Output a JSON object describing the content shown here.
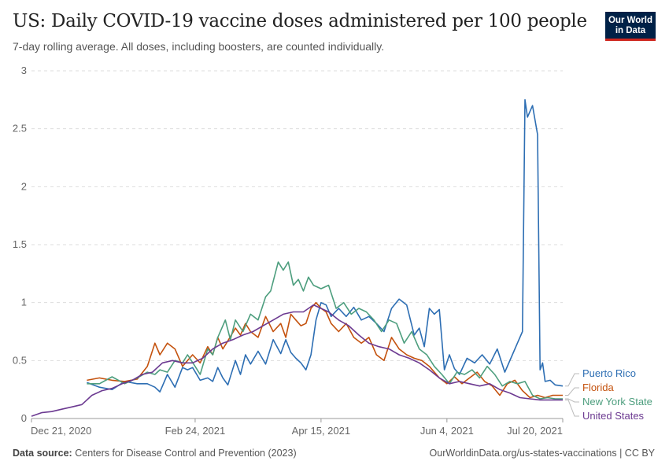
{
  "header": {
    "title": "US: Daily COVID-19 vaccine doses administered per 100 people",
    "subtitle": "7-day rolling average. All doses, including boosters, are counted individually.",
    "logo_line1": "Our World",
    "logo_line2": "in Data"
  },
  "footer": {
    "source_label": "Data source:",
    "source_text": "Centers for Disease Control and Prevention (2023)",
    "right_text": "OurWorldinData.org/us-states-vaccinations | CC BY"
  },
  "colors": {
    "puerto_rico": "#2d6eb3",
    "florida": "#c4520e",
    "new_york_state": "#4d9e7e",
    "united_states": "#6c3a91",
    "grid": "#dddddd"
  },
  "chart_data": {
    "type": "line",
    "title": "US: Daily COVID-19 vaccine doses administered per 100 people",
    "subtitle": "7-day rolling average. All doses, including boosters, are counted individually.",
    "ylim": [
      0,
      3
    ],
    "y_ticks": [
      0,
      0.5,
      1,
      1.5,
      2,
      2.5,
      3
    ],
    "y_tick_labels": [
      "0",
      "0.5",
      "1",
      "1.5",
      "2",
      "2.5",
      "3"
    ],
    "x_ticks": [
      "2020-12-21",
      "2021-02-24",
      "2021-04-15",
      "2021-06-04",
      "2021-07-20"
    ],
    "x_tick_labels": [
      "Dec 21, 2020",
      "Feb 24, 2021",
      "Apr 15, 2021",
      "Jun 4, 2021",
      "Jul 20, 2021"
    ],
    "xlim": [
      "2020-12-21",
      "2021-07-20"
    ],
    "grid": true,
    "legend": "right",
    "series": [
      {
        "name": "Puerto Rico",
        "color": "#2d6eb3",
        "points": [
          [
            "2021-01-12",
            0.31
          ],
          [
            "2021-01-17",
            0.27
          ],
          [
            "2021-01-22",
            0.25
          ],
          [
            "2021-01-27",
            0.32
          ],
          [
            "2021-02-01",
            0.3
          ],
          [
            "2021-02-05",
            0.3
          ],
          [
            "2021-02-08",
            0.27
          ],
          [
            "2021-02-10",
            0.23
          ],
          [
            "2021-02-13",
            0.38
          ],
          [
            "2021-02-16",
            0.27
          ],
          [
            "2021-02-19",
            0.44
          ],
          [
            "2021-02-21",
            0.42
          ],
          [
            "2021-02-23",
            0.44
          ],
          [
            "2021-02-26",
            0.33
          ],
          [
            "2021-03-01",
            0.35
          ],
          [
            "2021-03-03",
            0.32
          ],
          [
            "2021-03-05",
            0.44
          ],
          [
            "2021-03-07",
            0.35
          ],
          [
            "2021-03-09",
            0.29
          ],
          [
            "2021-03-12",
            0.5
          ],
          [
            "2021-03-14",
            0.38
          ],
          [
            "2021-03-16",
            0.55
          ],
          [
            "2021-03-18",
            0.47
          ],
          [
            "2021-03-21",
            0.58
          ],
          [
            "2021-03-24",
            0.47
          ],
          [
            "2021-03-27",
            0.68
          ],
          [
            "2021-03-30",
            0.56
          ],
          [
            "2021-04-01",
            0.68
          ],
          [
            "2021-04-03",
            0.57
          ],
          [
            "2021-04-05",
            0.52
          ],
          [
            "2021-04-07",
            0.48
          ],
          [
            "2021-04-09",
            0.42
          ],
          [
            "2021-04-11",
            0.55
          ],
          [
            "2021-04-13",
            0.85
          ],
          [
            "2021-04-15",
            1.0
          ],
          [
            "2021-04-17",
            0.98
          ],
          [
            "2021-04-19",
            0.88
          ],
          [
            "2021-04-22",
            0.95
          ],
          [
            "2021-04-25",
            0.88
          ],
          [
            "2021-04-28",
            0.96
          ],
          [
            "2021-05-01",
            0.85
          ],
          [
            "2021-05-04",
            0.88
          ],
          [
            "2021-05-07",
            0.82
          ],
          [
            "2021-05-10",
            0.75
          ],
          [
            "2021-05-13",
            0.95
          ],
          [
            "2021-05-16",
            1.03
          ],
          [
            "2021-05-19",
            0.98
          ],
          [
            "2021-05-22",
            0.72
          ],
          [
            "2021-05-24",
            0.78
          ],
          [
            "2021-05-26",
            0.62
          ],
          [
            "2021-05-28",
            0.95
          ],
          [
            "2021-05-30",
            0.9
          ],
          [
            "2021-06-01",
            0.94
          ],
          [
            "2021-06-03",
            0.42
          ],
          [
            "2021-06-05",
            0.55
          ],
          [
            "2021-06-07",
            0.43
          ],
          [
            "2021-06-09",
            0.38
          ],
          [
            "2021-06-12",
            0.52
          ],
          [
            "2021-06-15",
            0.48
          ],
          [
            "2021-06-18",
            0.55
          ],
          [
            "2021-06-21",
            0.47
          ],
          [
            "2021-06-24",
            0.6
          ],
          [
            "2021-06-27",
            0.4
          ],
          [
            "2021-06-30",
            0.55
          ],
          [
            "2021-07-02",
            0.65
          ],
          [
            "2021-07-04",
            0.75
          ],
          [
            "2021-07-05",
            2.75
          ],
          [
            "2021-07-06",
            2.6
          ],
          [
            "2021-07-08",
            2.7
          ],
          [
            "2021-07-10",
            2.45
          ],
          [
            "2021-07-11",
            0.42
          ],
          [
            "2021-07-12",
            0.48
          ],
          [
            "2021-07-13",
            0.32
          ],
          [
            "2021-07-15",
            0.33
          ],
          [
            "2021-07-17",
            0.29
          ],
          [
            "2021-07-20",
            0.28
          ]
        ]
      },
      {
        "name": "Florida",
        "color": "#c4520e",
        "points": [
          [
            "2021-01-12",
            0.33
          ],
          [
            "2021-01-17",
            0.35
          ],
          [
            "2021-01-22",
            0.33
          ],
          [
            "2021-01-27",
            0.32
          ],
          [
            "2021-02-01",
            0.34
          ],
          [
            "2021-02-05",
            0.45
          ],
          [
            "2021-02-08",
            0.65
          ],
          [
            "2021-02-10",
            0.55
          ],
          [
            "2021-02-13",
            0.65
          ],
          [
            "2021-02-16",
            0.6
          ],
          [
            "2021-02-19",
            0.45
          ],
          [
            "2021-02-21",
            0.5
          ],
          [
            "2021-02-23",
            0.55
          ],
          [
            "2021-02-26",
            0.48
          ],
          [
            "2021-03-01",
            0.62
          ],
          [
            "2021-03-03",
            0.55
          ],
          [
            "2021-03-05",
            0.7
          ],
          [
            "2021-03-07",
            0.6
          ],
          [
            "2021-03-09",
            0.67
          ],
          [
            "2021-03-12",
            0.78
          ],
          [
            "2021-03-14",
            0.72
          ],
          [
            "2021-03-16",
            0.82
          ],
          [
            "2021-03-18",
            0.75
          ],
          [
            "2021-03-21",
            0.7
          ],
          [
            "2021-03-24",
            0.88
          ],
          [
            "2021-03-27",
            0.75
          ],
          [
            "2021-03-30",
            0.82
          ],
          [
            "2021-04-01",
            0.7
          ],
          [
            "2021-04-03",
            0.9
          ],
          [
            "2021-04-05",
            0.85
          ],
          [
            "2021-04-07",
            0.8
          ],
          [
            "2021-04-09",
            0.82
          ],
          [
            "2021-04-11",
            0.95
          ],
          [
            "2021-04-13",
            1.0
          ],
          [
            "2021-04-15",
            0.95
          ],
          [
            "2021-04-17",
            0.92
          ],
          [
            "2021-04-19",
            0.82
          ],
          [
            "2021-04-22",
            0.75
          ],
          [
            "2021-04-25",
            0.82
          ],
          [
            "2021-04-28",
            0.7
          ],
          [
            "2021-05-01",
            0.65
          ],
          [
            "2021-05-04",
            0.7
          ],
          [
            "2021-05-07",
            0.55
          ],
          [
            "2021-05-10",
            0.5
          ],
          [
            "2021-05-13",
            0.7
          ],
          [
            "2021-05-16",
            0.6
          ],
          [
            "2021-05-19",
            0.55
          ],
          [
            "2021-05-22",
            0.52
          ],
          [
            "2021-05-25",
            0.5
          ],
          [
            "2021-05-28",
            0.45
          ],
          [
            "2021-06-01",
            0.35
          ],
          [
            "2021-06-04",
            0.3
          ],
          [
            "2021-06-07",
            0.36
          ],
          [
            "2021-06-10",
            0.3
          ],
          [
            "2021-06-13",
            0.35
          ],
          [
            "2021-06-16",
            0.4
          ],
          [
            "2021-06-19",
            0.32
          ],
          [
            "2021-06-22",
            0.28
          ],
          [
            "2021-06-25",
            0.2
          ],
          [
            "2021-06-28",
            0.3
          ],
          [
            "2021-07-01",
            0.33
          ],
          [
            "2021-07-04",
            0.24
          ],
          [
            "2021-07-07",
            0.18
          ],
          [
            "2021-07-10",
            0.2
          ],
          [
            "2021-07-13",
            0.18
          ],
          [
            "2021-07-16",
            0.2
          ],
          [
            "2021-07-20",
            0.2
          ]
        ]
      },
      {
        "name": "New York State",
        "color": "#4d9e7e",
        "points": [
          [
            "2021-01-12",
            0.3
          ],
          [
            "2021-01-17",
            0.3
          ],
          [
            "2021-01-22",
            0.36
          ],
          [
            "2021-01-27",
            0.3
          ],
          [
            "2021-02-01",
            0.35
          ],
          [
            "2021-02-05",
            0.4
          ],
          [
            "2021-02-08",
            0.38
          ],
          [
            "2021-02-10",
            0.42
          ],
          [
            "2021-02-13",
            0.4
          ],
          [
            "2021-02-16",
            0.5
          ],
          [
            "2021-02-19",
            0.48
          ],
          [
            "2021-02-21",
            0.55
          ],
          [
            "2021-02-24",
            0.45
          ],
          [
            "2021-02-26",
            0.38
          ],
          [
            "2021-03-01",
            0.6
          ],
          [
            "2021-03-03",
            0.55
          ],
          [
            "2021-03-05",
            0.7
          ],
          [
            "2021-03-08",
            0.85
          ],
          [
            "2021-03-10",
            0.68
          ],
          [
            "2021-03-12",
            0.85
          ],
          [
            "2021-03-15",
            0.75
          ],
          [
            "2021-03-18",
            0.9
          ],
          [
            "2021-03-21",
            0.85
          ],
          [
            "2021-03-24",
            1.05
          ],
          [
            "2021-03-26",
            1.1
          ],
          [
            "2021-03-29",
            1.35
          ],
          [
            "2021-03-31",
            1.28
          ],
          [
            "2021-04-02",
            1.35
          ],
          [
            "2021-04-04",
            1.15
          ],
          [
            "2021-04-06",
            1.2
          ],
          [
            "2021-04-08",
            1.1
          ],
          [
            "2021-04-10",
            1.22
          ],
          [
            "2021-04-12",
            1.15
          ],
          [
            "2021-04-15",
            1.12
          ],
          [
            "2021-04-18",
            1.15
          ],
          [
            "2021-04-21",
            0.95
          ],
          [
            "2021-04-24",
            1.0
          ],
          [
            "2021-04-27",
            0.9
          ],
          [
            "2021-04-30",
            0.95
          ],
          [
            "2021-05-03",
            0.92
          ],
          [
            "2021-05-06",
            0.85
          ],
          [
            "2021-05-09",
            0.75
          ],
          [
            "2021-05-12",
            0.85
          ],
          [
            "2021-05-15",
            0.82
          ],
          [
            "2021-05-18",
            0.65
          ],
          [
            "2021-05-21",
            0.75
          ],
          [
            "2021-05-24",
            0.6
          ],
          [
            "2021-05-27",
            0.55
          ],
          [
            "2021-05-30",
            0.45
          ],
          [
            "2021-06-02",
            0.38
          ],
          [
            "2021-06-05",
            0.3
          ],
          [
            "2021-06-08",
            0.4
          ],
          [
            "2021-06-11",
            0.38
          ],
          [
            "2021-06-14",
            0.42
          ],
          [
            "2021-06-17",
            0.35
          ],
          [
            "2021-06-20",
            0.45
          ],
          [
            "2021-06-23",
            0.38
          ],
          [
            "2021-06-26",
            0.28
          ],
          [
            "2021-06-29",
            0.32
          ],
          [
            "2021-07-02",
            0.3
          ],
          [
            "2021-07-05",
            0.32
          ],
          [
            "2021-07-08",
            0.2
          ],
          [
            "2021-07-11",
            0.17
          ],
          [
            "2021-07-14",
            0.18
          ],
          [
            "2021-07-17",
            0.17
          ],
          [
            "2021-07-20",
            0.17
          ]
        ]
      },
      {
        "name": "United States",
        "color": "#6c3a91",
        "points": [
          [
            "2020-12-21",
            0.02
          ],
          [
            "2020-12-25",
            0.05
          ],
          [
            "2020-12-29",
            0.06
          ],
          [
            "2021-01-02",
            0.08
          ],
          [
            "2021-01-06",
            0.1
          ],
          [
            "2021-01-10",
            0.12
          ],
          [
            "2021-01-14",
            0.2
          ],
          [
            "2021-01-18",
            0.24
          ],
          [
            "2021-01-22",
            0.26
          ],
          [
            "2021-01-26",
            0.3
          ],
          [
            "2021-01-30",
            0.33
          ],
          [
            "2021-02-03",
            0.38
          ],
          [
            "2021-02-07",
            0.4
          ],
          [
            "2021-02-11",
            0.48
          ],
          [
            "2021-02-15",
            0.5
          ],
          [
            "2021-02-19",
            0.48
          ],
          [
            "2021-02-23",
            0.48
          ],
          [
            "2021-02-27",
            0.52
          ],
          [
            "2021-03-03",
            0.6
          ],
          [
            "2021-03-07",
            0.65
          ],
          [
            "2021-03-11",
            0.68
          ],
          [
            "2021-03-15",
            0.72
          ],
          [
            "2021-03-19",
            0.75
          ],
          [
            "2021-03-23",
            0.8
          ],
          [
            "2021-03-27",
            0.85
          ],
          [
            "2021-03-31",
            0.9
          ],
          [
            "2021-04-04",
            0.92
          ],
          [
            "2021-04-08",
            0.92
          ],
          [
            "2021-04-12",
            0.98
          ],
          [
            "2021-04-15",
            0.95
          ],
          [
            "2021-04-18",
            0.92
          ],
          [
            "2021-04-22",
            0.85
          ],
          [
            "2021-04-26",
            0.8
          ],
          [
            "2021-04-30",
            0.72
          ],
          [
            "2021-05-04",
            0.65
          ],
          [
            "2021-05-08",
            0.62
          ],
          [
            "2021-05-12",
            0.6
          ],
          [
            "2021-05-16",
            0.55
          ],
          [
            "2021-05-20",
            0.52
          ],
          [
            "2021-05-24",
            0.48
          ],
          [
            "2021-05-28",
            0.42
          ],
          [
            "2021-06-01",
            0.35
          ],
          [
            "2021-06-05",
            0.3
          ],
          [
            "2021-06-09",
            0.32
          ],
          [
            "2021-06-13",
            0.3
          ],
          [
            "2021-06-17",
            0.28
          ],
          [
            "2021-06-21",
            0.3
          ],
          [
            "2021-06-25",
            0.25
          ],
          [
            "2021-06-29",
            0.22
          ],
          [
            "2021-07-03",
            0.18
          ],
          [
            "2021-07-07",
            0.17
          ],
          [
            "2021-07-11",
            0.16
          ],
          [
            "2021-07-15",
            0.16
          ],
          [
            "2021-07-20",
            0.16
          ]
        ]
      }
    ]
  }
}
